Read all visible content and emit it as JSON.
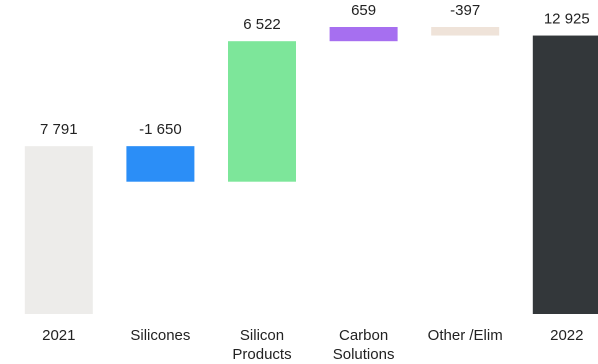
{
  "chart_data": {
    "type": "waterfall",
    "categories": [
      "2021",
      "Silicones",
      "Silicon Products",
      "Carbon Solutions",
      "Other /Elim",
      "2022"
    ],
    "values": [
      7791,
      -1650,
      6522,
      659,
      -397,
      12925
    ],
    "value_labels": [
      "7 791",
      "-1 650",
      "6 522",
      "659",
      "-397",
      "12 925"
    ],
    "colors": [
      "#edecea",
      "#2b8ef7",
      "#7de69a",
      "#a66ff0",
      "#efe3d9",
      "#33373a"
    ]
  }
}
